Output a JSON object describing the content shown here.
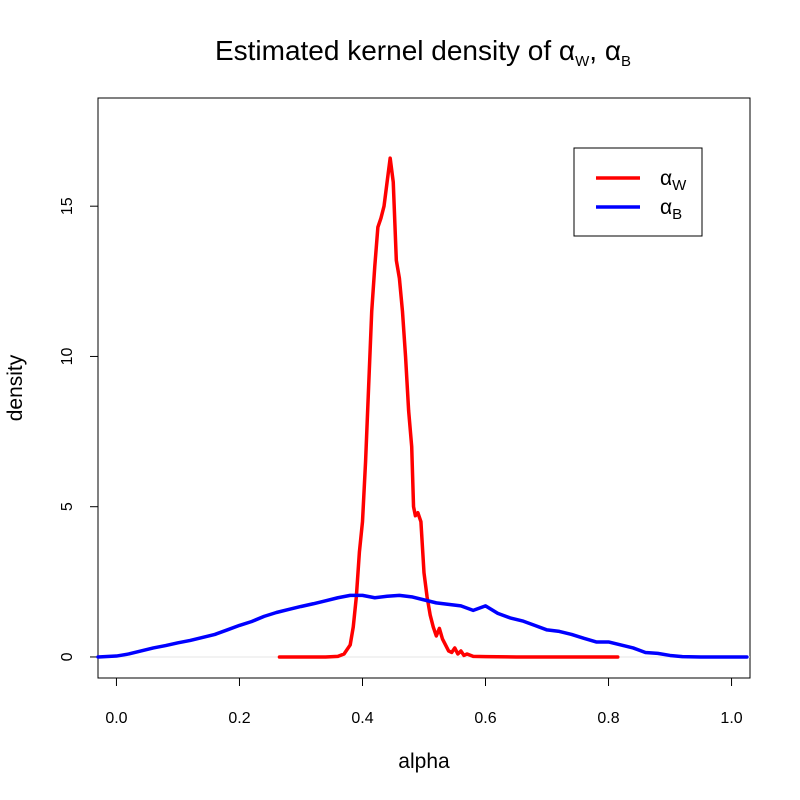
{
  "chart_data": {
    "type": "line",
    "title": {
      "text": "Estimated kernel density of ",
      "symbol": "α",
      "sub1": "W",
      "sep": ", ",
      "sub2": "B"
    },
    "xlabel": "alpha",
    "ylabel": "density",
    "xlim": [
      -0.03,
      1.03
    ],
    "ylim": [
      -0.7,
      18.6
    ],
    "x_ticks": [
      0.0,
      0.2,
      0.4,
      0.6,
      0.8,
      1.0
    ],
    "x_tick_labels": [
      "0.0",
      "0.2",
      "0.4",
      "0.6",
      "0.8",
      "1.0"
    ],
    "y_ticks": [
      0,
      5,
      10,
      15
    ],
    "y_tick_labels": [
      "0",
      "5",
      "10",
      "15"
    ],
    "grid": false,
    "legend_position": "top-right",
    "series": [
      {
        "name": "αW",
        "symbol": "α",
        "subscript": "W",
        "color": "#ff0000",
        "points": [
          [
            0.265,
            0.0
          ],
          [
            0.3,
            0.0
          ],
          [
            0.34,
            0.0
          ],
          [
            0.36,
            0.02
          ],
          [
            0.37,
            0.1
          ],
          [
            0.38,
            0.4
          ],
          [
            0.385,
            1.0
          ],
          [
            0.39,
            2.0
          ],
          [
            0.395,
            3.5
          ],
          [
            0.4,
            4.5
          ],
          [
            0.405,
            6.5
          ],
          [
            0.41,
            9.0
          ],
          [
            0.415,
            11.5
          ],
          [
            0.42,
            13.0
          ],
          [
            0.425,
            14.3
          ],
          [
            0.43,
            14.6
          ],
          [
            0.435,
            15.0
          ],
          [
            0.44,
            15.8
          ],
          [
            0.445,
            16.6
          ],
          [
            0.45,
            15.8
          ],
          [
            0.455,
            13.2
          ],
          [
            0.46,
            12.6
          ],
          [
            0.465,
            11.5
          ],
          [
            0.47,
            10.0
          ],
          [
            0.475,
            8.2
          ],
          [
            0.48,
            7.0
          ],
          [
            0.483,
            5.0
          ],
          [
            0.486,
            4.7
          ],
          [
            0.49,
            4.8
          ],
          [
            0.495,
            4.5
          ],
          [
            0.5,
            2.8
          ],
          [
            0.505,
            2.0
          ],
          [
            0.51,
            1.4
          ],
          [
            0.515,
            1.0
          ],
          [
            0.52,
            0.7
          ],
          [
            0.525,
            0.95
          ],
          [
            0.53,
            0.6
          ],
          [
            0.535,
            0.4
          ],
          [
            0.54,
            0.2
          ],
          [
            0.545,
            0.15
          ],
          [
            0.55,
            0.3
          ],
          [
            0.555,
            0.1
          ],
          [
            0.56,
            0.2
          ],
          [
            0.565,
            0.05
          ],
          [
            0.57,
            0.1
          ],
          [
            0.58,
            0.02
          ],
          [
            0.6,
            0.01
          ],
          [
            0.65,
            0.0
          ],
          [
            0.7,
            0.0
          ],
          [
            0.75,
            0.0
          ],
          [
            0.815,
            0.0
          ]
        ]
      },
      {
        "name": "αB",
        "symbol": "α",
        "subscript": "B",
        "color": "#0000ff",
        "points": [
          [
            -0.03,
            0.0
          ],
          [
            0.0,
            0.03
          ],
          [
            0.02,
            0.1
          ],
          [
            0.04,
            0.2
          ],
          [
            0.06,
            0.3
          ],
          [
            0.08,
            0.38
          ],
          [
            0.1,
            0.47
          ],
          [
            0.12,
            0.55
          ],
          [
            0.14,
            0.65
          ],
          [
            0.16,
            0.75
          ],
          [
            0.18,
            0.9
          ],
          [
            0.2,
            1.05
          ],
          [
            0.22,
            1.18
          ],
          [
            0.24,
            1.35
          ],
          [
            0.26,
            1.48
          ],
          [
            0.28,
            1.58
          ],
          [
            0.3,
            1.68
          ],
          [
            0.32,
            1.77
          ],
          [
            0.34,
            1.87
          ],
          [
            0.36,
            1.97
          ],
          [
            0.38,
            2.05
          ],
          [
            0.4,
            2.05
          ],
          [
            0.42,
            1.97
          ],
          [
            0.44,
            2.02
          ],
          [
            0.46,
            2.05
          ],
          [
            0.48,
            2.0
          ],
          [
            0.5,
            1.9
          ],
          [
            0.52,
            1.8
          ],
          [
            0.54,
            1.75
          ],
          [
            0.56,
            1.7
          ],
          [
            0.58,
            1.55
          ],
          [
            0.6,
            1.7
          ],
          [
            0.62,
            1.45
          ],
          [
            0.64,
            1.3
          ],
          [
            0.66,
            1.2
          ],
          [
            0.68,
            1.05
          ],
          [
            0.7,
            0.9
          ],
          [
            0.72,
            0.85
          ],
          [
            0.74,
            0.75
          ],
          [
            0.76,
            0.62
          ],
          [
            0.78,
            0.5
          ],
          [
            0.8,
            0.5
          ],
          [
            0.82,
            0.4
          ],
          [
            0.84,
            0.3
          ],
          [
            0.86,
            0.15
          ],
          [
            0.88,
            0.12
          ],
          [
            0.9,
            0.05
          ],
          [
            0.92,
            0.01
          ],
          [
            0.95,
            0.0
          ],
          [
            1.0,
            0.0
          ],
          [
            1.025,
            0.0
          ]
        ]
      }
    ]
  }
}
